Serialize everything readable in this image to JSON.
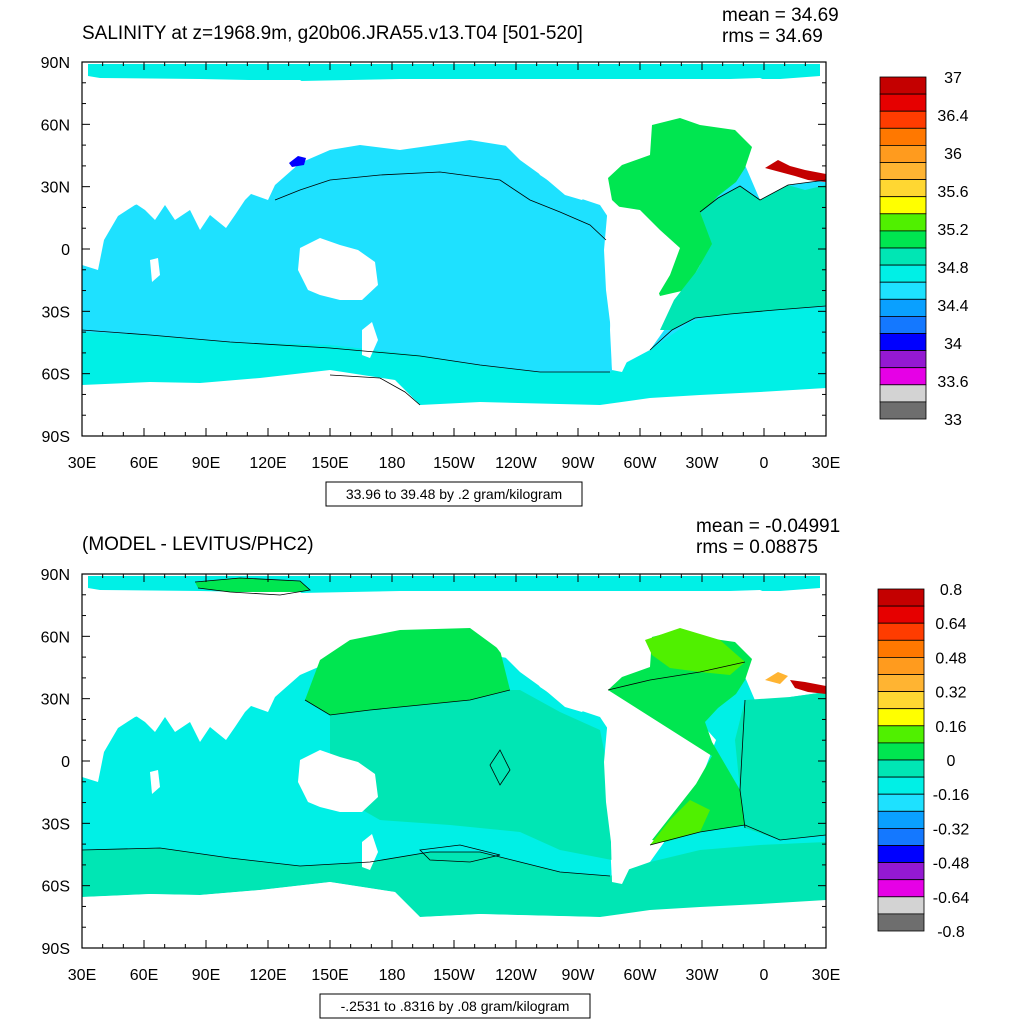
{
  "palette": [
    "#6e6e6e",
    "#d3d3d3",
    "#e600e6",
    "#9419d2",
    "#0000ff",
    "#1478ff",
    "#0aa0ff",
    "#1ee1ff",
    "#00f0e6",
    "#00e6b4",
    "#00e650",
    "#50f000",
    "#ffff00",
    "#ffd732",
    "#ffb432",
    "#ff9b1e",
    "#ff7800",
    "#ff3c00",
    "#e60000",
    "#c40000"
  ],
  "colors": {
    "land": "#ffffff",
    "deep_cyan": "#1ee1ff",
    "light_cyan": "#00f0e6",
    "teal": "#00e6b4",
    "green": "#00e650",
    "lime": "#50f000",
    "blue": "#0000ff",
    "dark_red": "#c40000",
    "orange": "#ffb432"
  },
  "panels": [
    {
      "title": "SALINITY at z=1968.9m, g20b06.JRA55.v13.T04 [501-520]",
      "mean_label": "mean = 34.69",
      "rms_label": "rms = 34.69",
      "info_label": "33.96 to 39.48 by .2 gram/kilogram"
    },
    {
      "title": "(MODEL - LEVITUS/PHC2)",
      "mean_label": "mean = -0.04991",
      "rms_label": "rms = 0.08875",
      "info_label": "-.2531 to .8316 by .08 gram/kilogram"
    }
  ],
  "chart_data": [
    {
      "type": "heatmap",
      "title": "SALINITY at z=1968.9m, g20b06.JRA55.v13.T04 [501-520]",
      "subtitle": "33.96 to 39.48 by .2 gram/kilogram",
      "mean": 34.69,
      "rms": 34.69,
      "units": "gram/kilogram",
      "x_ticks": [
        "30E",
        "60E",
        "90E",
        "120E",
        "150E",
        "180",
        "150W",
        "120W",
        "90W",
        "60W",
        "30W",
        "0",
        "30E"
      ],
      "y_ticks": [
        "90N",
        "60N",
        "30N",
        "0",
        "30S",
        "60S",
        "90S"
      ],
      "xlim": [
        30,
        390
      ],
      "ylim": [
        -90,
        90
      ],
      "colorbar_levels": [
        "37",
        "36.4",
        "36",
        "35.6",
        "35.2",
        "34.8",
        "34.4",
        "34",
        "33.6",
        "33"
      ],
      "dominant_values": {
        "pacific_indian": 34.7,
        "atlantic": 35.0,
        "mediterranean": 36.8
      }
    },
    {
      "type": "heatmap",
      "title": "(MODEL - LEVITUS/PHC2)",
      "subtitle": "-.2531 to .8316 by .08 gram/kilogram",
      "mean": -0.04991,
      "rms": 0.08875,
      "units": "gram/kilogram",
      "x_ticks": [
        "30E",
        "60E",
        "90E",
        "120E",
        "150E",
        "180",
        "150W",
        "120W",
        "90W",
        "60W",
        "30W",
        "0",
        "30E"
      ],
      "y_ticks": [
        "90N",
        "60N",
        "30N",
        "0",
        "30S",
        "60S",
        "90S"
      ],
      "xlim": [
        30,
        390
      ],
      "ylim": [
        -90,
        90
      ],
      "colorbar_levels": [
        "0.8",
        "0.64",
        "0.48",
        "0.32",
        "0.16",
        "0",
        "-0.16",
        "-0.32",
        "-0.48",
        "-0.64",
        "-0.8"
      ],
      "dominant_values": {
        "north_pacific": 0.05,
        "south_pacific": -0.05,
        "atlantic": 0.1,
        "mediterranean": 0.8
      }
    }
  ]
}
